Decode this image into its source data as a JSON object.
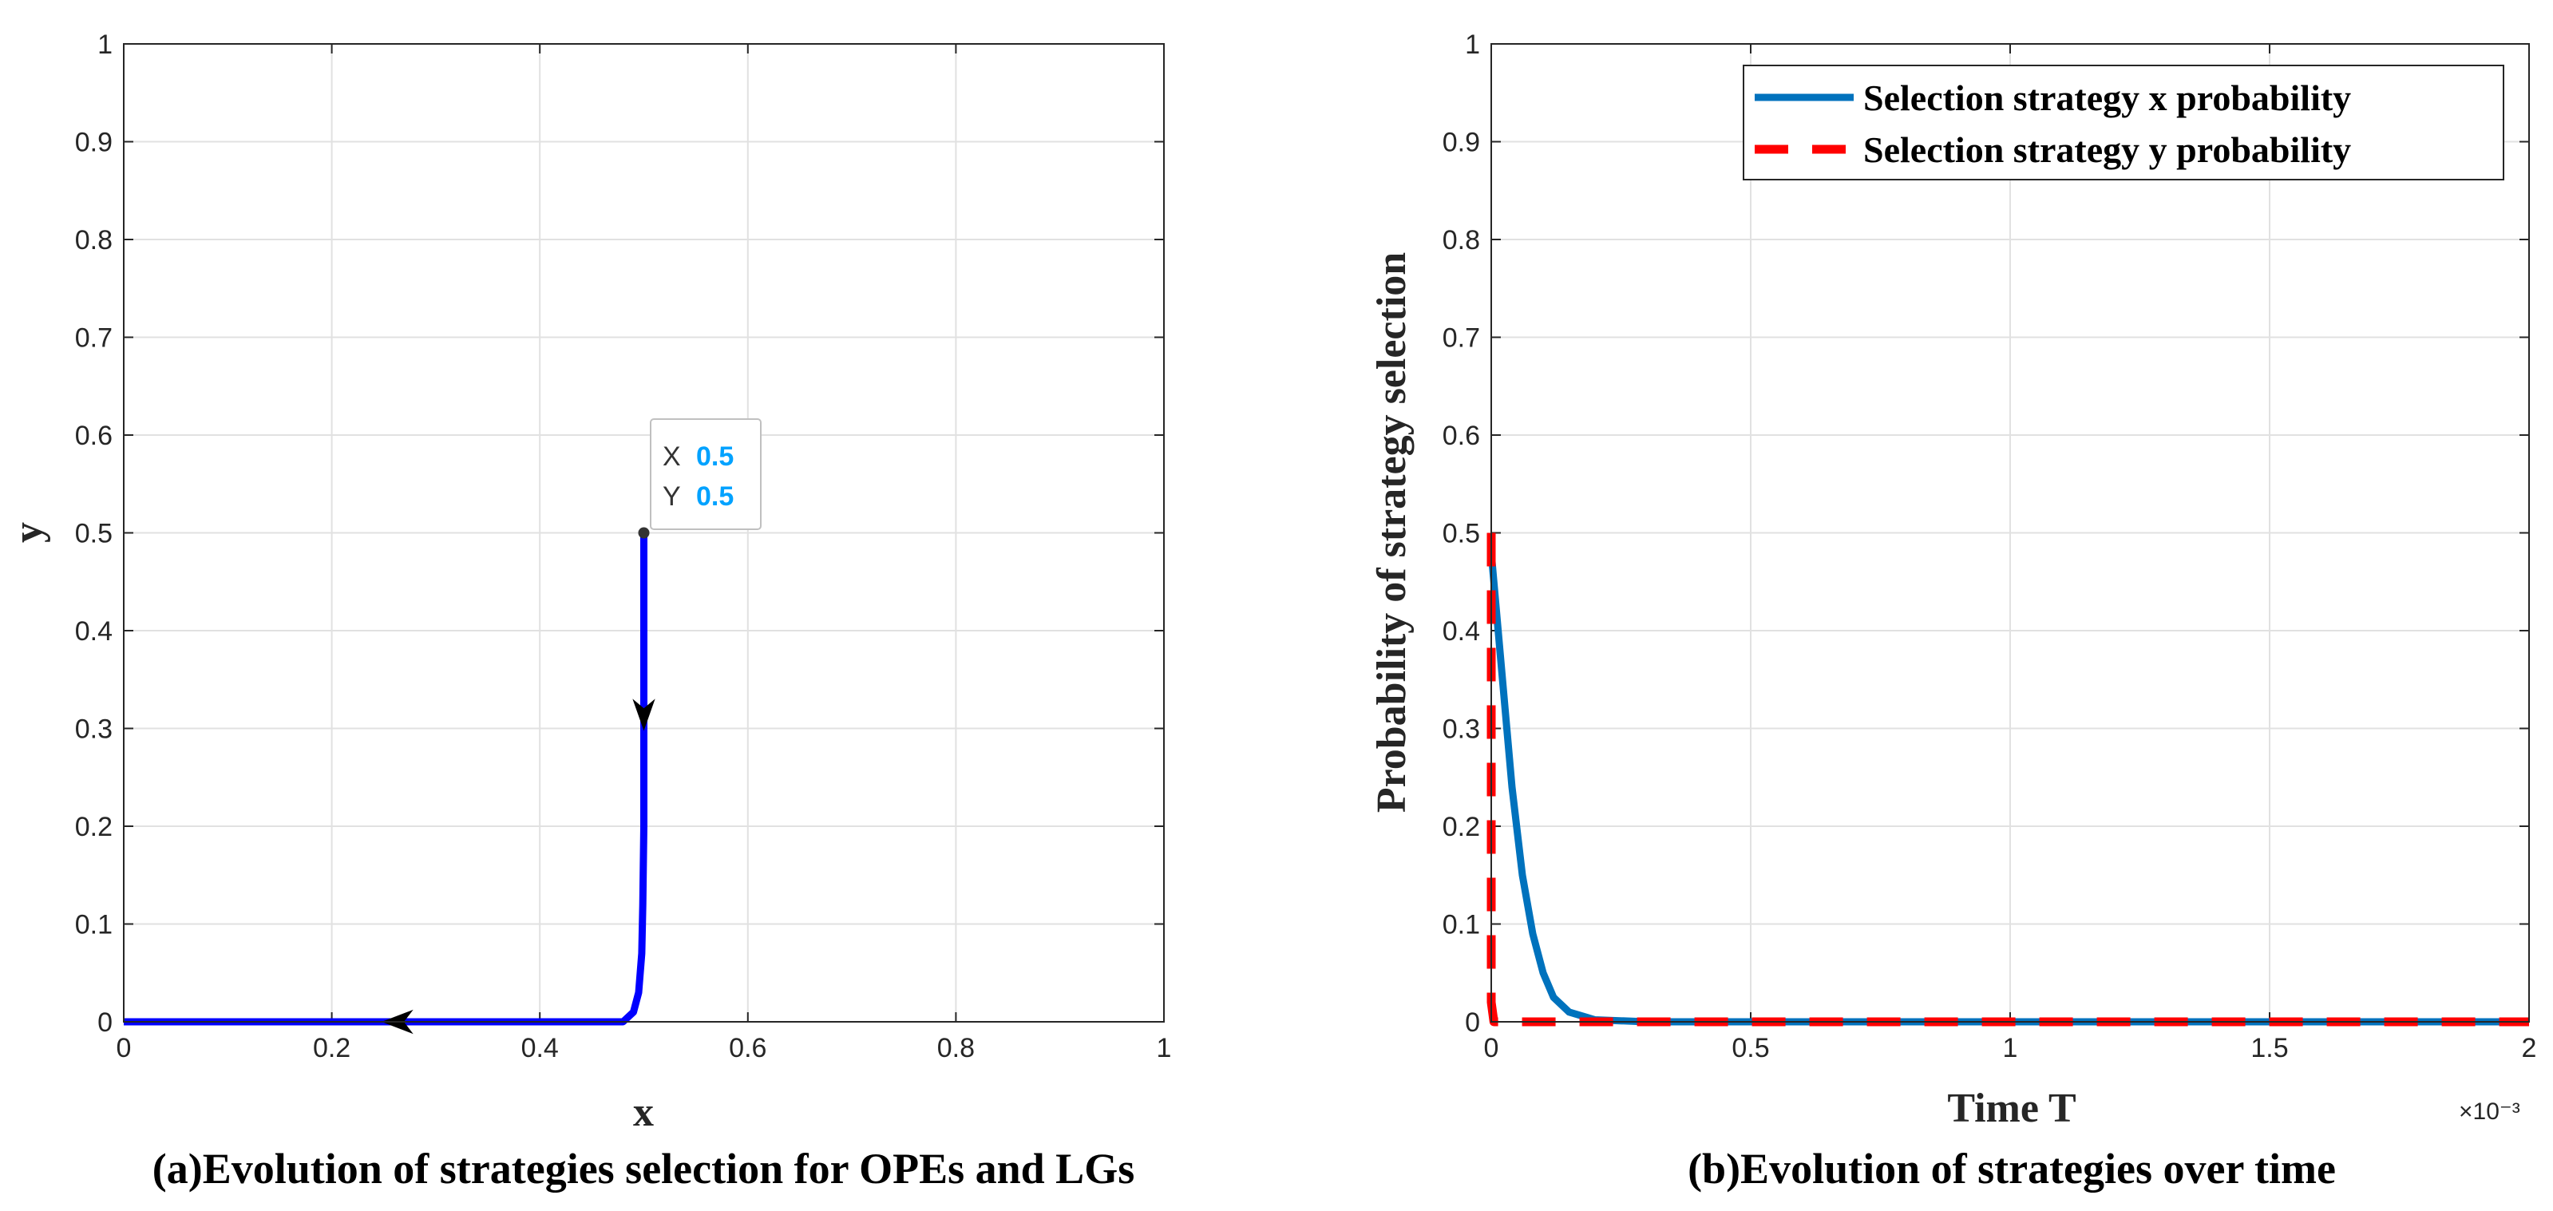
{
  "chart_data": [
    {
      "type": "line",
      "caption": "(a)Evolution of strategies selection for OPEs and LGs",
      "xlabel": "x",
      "ylabel": "y",
      "xlim": [
        0,
        1
      ],
      "ylim": [
        0,
        1
      ],
      "grid": true,
      "x_ticks": [
        "0",
        "0.2",
        "0.4",
        "0.6",
        "0.8",
        "1"
      ],
      "y_ticks": [
        "0",
        "0.1",
        "0.2",
        "0.3",
        "0.4",
        "0.5",
        "0.6",
        "0.7",
        "0.8",
        "0.9",
        "1"
      ],
      "series": [
        {
          "name": "trajectory",
          "color": "#0000ff",
          "x": [
            0.5,
            0.5,
            0.5,
            0.5,
            0.499,
            0.498,
            0.495,
            0.49,
            0.48,
            0.4,
            0.3,
            0.2,
            0.1,
            0.0
          ],
          "y": [
            0.5,
            0.4,
            0.3,
            0.2,
            0.12,
            0.07,
            0.03,
            0.01,
            0.0,
            0.0,
            0.0,
            0.0,
            0.0,
            0.0
          ]
        }
      ],
      "arrows": [
        {
          "x": 0.5,
          "y": 0.3,
          "direction": "down"
        },
        {
          "x": 0.25,
          "y": 0.0,
          "direction": "left"
        }
      ],
      "datatip": {
        "x": 0.5,
        "y": 0.5,
        "x_key": "X",
        "x_value": "0.5",
        "y_key": "Y",
        "y_value": "0.5"
      }
    },
    {
      "type": "line",
      "caption": "(b)Evolution of strategies over time",
      "xlabel": "Time T",
      "ylabel": "Probability of strategy selection",
      "x_exponent": "×10⁻³",
      "xlim": [
        0,
        2
      ],
      "ylim": [
        0,
        1
      ],
      "grid": true,
      "x_ticks": [
        "0",
        "0.5",
        "1",
        "1.5",
        "2"
      ],
      "y_ticks": [
        "0",
        "0.1",
        "0.2",
        "0.3",
        "0.4",
        "0.5",
        "0.6",
        "0.7",
        "0.8",
        "0.9",
        "1"
      ],
      "legend_position": "top-right",
      "series": [
        {
          "name": "Selection strategy x probability",
          "color": "#0072bd",
          "style": "solid",
          "x": [
            0,
            0.02,
            0.04,
            0.06,
            0.08,
            0.1,
            0.12,
            0.15,
            0.2,
            0.3,
            2.0
          ],
          "y": [
            0.48,
            0.36,
            0.24,
            0.15,
            0.09,
            0.05,
            0.025,
            0.01,
            0.002,
            0.0,
            0.0
          ]
        },
        {
          "name": "Selection strategy y probability",
          "color": "#ff0000",
          "style": "dashed",
          "x": [
            0,
            0.0,
            0.005,
            0.05,
            2.0
          ],
          "y": [
            0.5,
            0.02,
            0.0,
            0.0,
            0.0
          ]
        }
      ]
    }
  ]
}
